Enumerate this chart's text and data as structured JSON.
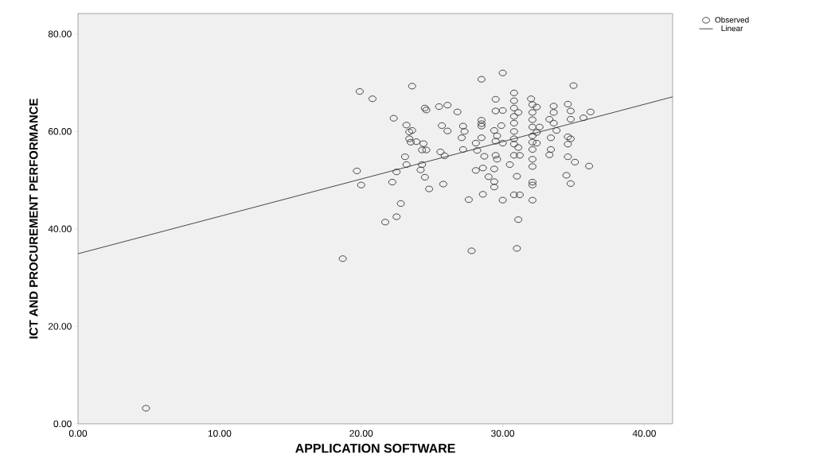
{
  "chart_data": {
    "type": "scatter",
    "xlabel": "APPLICATION SOFTWARE",
    "ylabel": "ICT AND PROCUREMENT PERFORMANCE",
    "xlim": [
      0,
      42
    ],
    "ylim": [
      0,
      84.2
    ],
    "xticks": [
      {
        "value": 0,
        "label": "0.00"
      },
      {
        "value": 10,
        "label": "10.00"
      },
      {
        "value": 20,
        "label": "20.00"
      },
      {
        "value": 30,
        "label": "30.00"
      },
      {
        "value": 40,
        "label": "40.00"
      }
    ],
    "yticks": [
      {
        "value": 0,
        "label": "0.00"
      },
      {
        "value": 20,
        "label": "20.00"
      },
      {
        "value": 40,
        "label": "40.00"
      },
      {
        "value": 60,
        "label": "60.00"
      },
      {
        "value": 80,
        "label": "80.00"
      }
    ],
    "grid": false,
    "legend": "top right",
    "series": [
      {
        "name": "Observed",
        "marker": "circle",
        "color": "#333333",
        "x": [
          4.8,
          18.7,
          27.8,
          31.0,
          31.1,
          21.7,
          22.5,
          22.8,
          19.7,
          20.0,
          19.9,
          20.8,
          22.3,
          23.6,
          22.2,
          22.5,
          23.1,
          23.2,
          23.2,
          23.4,
          23.6,
          23.4,
          23.5,
          23.9,
          24.4,
          24.6,
          24.5,
          24.3,
          24.6,
          24.3,
          24.2,
          24.5,
          24.8,
          25.5,
          26.1,
          25.7,
          26.1,
          25.6,
          25.9,
          25.8,
          26.8,
          27.2,
          27.1,
          27.3,
          27.2,
          27.6,
          28.1,
          28.2,
          28.1,
          28.5,
          28.5,
          28.5,
          28.5,
          28.5,
          28.6,
          28.6,
          28.7,
          29.0,
          29.4,
          29.4,
          29.5,
          29.5,
          29.4,
          29.6,
          29.5,
          29.5,
          29.6,
          29.4,
          30.0,
          30.0,
          29.9,
          30.0,
          30.0,
          30.5,
          30.8,
          30.8,
          30.8,
          30.8,
          30.8,
          30.8,
          30.8,
          30.8,
          30.8,
          31.0,
          30.8,
          31.2,
          31.1,
          31.1,
          31.2,
          32.0,
          32.1,
          32.1,
          32.1,
          32.1,
          32.1,
          32.1,
          32.1,
          32.1,
          32.1,
          32.1,
          32.1,
          32.1,
          32.4,
          32.4,
          32.4,
          32.6,
          33.3,
          33.4,
          33.4,
          33.3,
          33.6,
          33.6,
          33.6,
          33.8,
          34.6,
          34.8,
          34.8,
          34.6,
          34.8,
          34.6,
          34.6,
          35.1,
          34.5,
          34.8,
          35.0,
          35.7,
          36.2,
          36.1
        ],
        "values": [
          3.2,
          33.9,
          35.5,
          36.0,
          41.9,
          41.4,
          42.5,
          45.2,
          51.9,
          49.0,
          68.2,
          66.7,
          62.7,
          69.3,
          49.6,
          51.7,
          54.8,
          53.2,
          61.3,
          59.9,
          60.2,
          58.5,
          57.8,
          57.9,
          57.5,
          64.4,
          64.8,
          56.2,
          56.2,
          53.2,
          52.1,
          50.6,
          48.2,
          65.1,
          65.4,
          61.2,
          60.1,
          55.8,
          55.0,
          49.2,
          64.0,
          61.1,
          58.7,
          60.0,
          56.3,
          46.0,
          57.6,
          56.1,
          52.0,
          70.7,
          62.3,
          61.6,
          61.1,
          58.7,
          52.5,
          47.1,
          54.9,
          50.7,
          48.6,
          49.7,
          66.6,
          64.2,
          60.2,
          59.1,
          58.0,
          55.1,
          54.3,
          52.3,
          72.0,
          64.3,
          61.2,
          57.6,
          45.9,
          53.2,
          67.9,
          66.3,
          64.8,
          63.1,
          61.7,
          60.0,
          58.5,
          57.4,
          55.1,
          50.8,
          47.0,
          47.0,
          63.9,
          56.7,
          55.1,
          66.7,
          65.5,
          63.9,
          62.4,
          60.9,
          59.1,
          57.8,
          56.3,
          54.3,
          52.8,
          49.6,
          49.0,
          45.9,
          65.0,
          59.8,
          57.6,
          60.9,
          55.2,
          56.3,
          58.7,
          62.5,
          65.2,
          63.9,
          61.7,
          60.2,
          65.6,
          64.2,
          62.5,
          58.9,
          58.5,
          57.4,
          54.8,
          53.7,
          51.0,
          49.3,
          69.4,
          62.8,
          64.0,
          52.9
        ]
      },
      {
        "name": "Linear",
        "type": "line",
        "color": "#333333",
        "line_style": "solid",
        "marker": "none",
        "x": [
          0,
          42
        ],
        "values": [
          34.9,
          67.1
        ]
      }
    ]
  }
}
